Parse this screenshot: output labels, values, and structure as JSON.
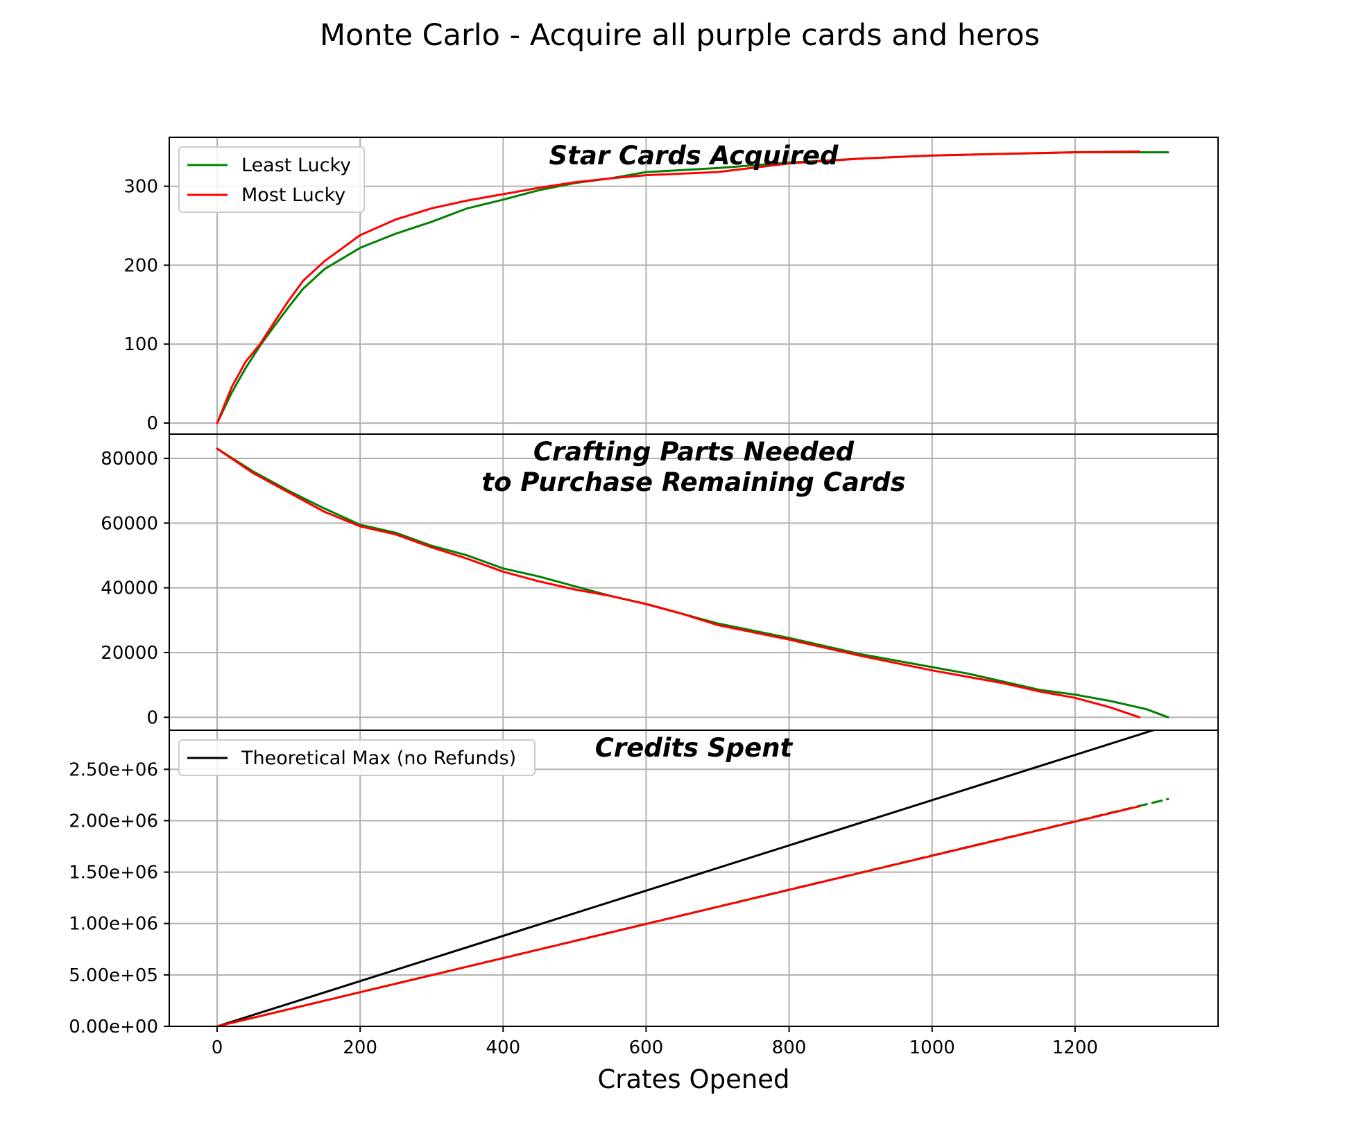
{
  "figure": {
    "suptitle": "Monte Carlo - Acquire all purple cards and heros",
    "xlabel": "Crates Opened"
  },
  "colors": {
    "least_lucky": "#008000",
    "most_lucky": "#ff0000",
    "theoretical_max": "#000000",
    "grid": "#b0b0b0"
  },
  "chart_data": [
    {
      "type": "line",
      "title": "Star Cards Acquired",
      "xlabel": "",
      "ylabel": "",
      "xlim": [
        -67,
        1400
      ],
      "ylim": [
        -14,
        362
      ],
      "xticks": [
        0,
        200,
        400,
        600,
        800,
        1000,
        1200
      ],
      "yticks": [
        0,
        100,
        200,
        300
      ],
      "ytick_labels": [
        "0",
        "100",
        "200",
        "300"
      ],
      "grid": true,
      "legend": {
        "location": "upper left",
        "entries": [
          "Least Lucky",
          "Most Lucky"
        ]
      },
      "series": [
        {
          "name": "Least Lucky",
          "color": "#008000",
          "style": "solid",
          "x": [
            0,
            20,
            40,
            60,
            80,
            100,
            120,
            150,
            200,
            250,
            300,
            350,
            400,
            450,
            500,
            550,
            600,
            700,
            800,
            900,
            1000,
            1100,
            1200,
            1330
          ],
          "y": [
            0,
            38,
            70,
            98,
            123,
            147,
            170,
            195,
            222,
            240,
            255,
            272,
            283,
            295,
            304,
            310,
            318,
            323,
            330,
            335,
            339,
            341,
            343,
            343
          ]
        },
        {
          "name": "Most Lucky",
          "color": "#ff0000",
          "style": "solid",
          "x": [
            0,
            20,
            40,
            60,
            80,
            100,
            120,
            150,
            200,
            250,
            300,
            350,
            400,
            450,
            500,
            550,
            600,
            700,
            800,
            900,
            1000,
            1100,
            1200,
            1290
          ],
          "y": [
            0,
            45,
            78,
            100,
            128,
            155,
            180,
            205,
            238,
            258,
            272,
            282,
            290,
            298,
            305,
            310,
            314,
            318,
            329,
            335,
            339,
            341,
            343,
            344
          ]
        }
      ]
    },
    {
      "type": "line",
      "title": "Crafting Parts Needed\nto Purchase Remaining Cards",
      "xlabel": "",
      "ylabel": "",
      "xlim": [
        -67,
        1400
      ],
      "ylim": [
        -4000,
        87500
      ],
      "xticks": [
        0,
        200,
        400,
        600,
        800,
        1000,
        1200
      ],
      "yticks": [
        0,
        20000,
        40000,
        60000,
        80000
      ],
      "ytick_labels": [
        "0",
        "20000",
        "40000",
        "60000",
        "80000"
      ],
      "grid": true,
      "series": [
        {
          "name": "Least Lucky",
          "color": "#008000",
          "style": "solid",
          "x": [
            0,
            50,
            100,
            150,
            200,
            250,
            300,
            350,
            400,
            450,
            500,
            550,
            600,
            650,
            700,
            800,
            900,
            1000,
            1050,
            1100,
            1150,
            1200,
            1250,
            1300,
            1330
          ],
          "y": [
            83000,
            76000,
            70000,
            64500,
            59500,
            57000,
            53000,
            50000,
            46000,
            43500,
            40500,
            37500,
            35000,
            32000,
            29000,
            24500,
            19500,
            15500,
            13500,
            11000,
            8500,
            7000,
            5000,
            2500,
            0
          ]
        },
        {
          "name": "Most Lucky",
          "color": "#ff0000",
          "style": "solid",
          "x": [
            0,
            50,
            100,
            150,
            200,
            250,
            300,
            350,
            400,
            450,
            500,
            550,
            600,
            650,
            700,
            800,
            900,
            1000,
            1050,
            1100,
            1150,
            1200,
            1250,
            1290
          ],
          "y": [
            83000,
            75500,
            69500,
            63500,
            59000,
            56500,
            52500,
            49000,
            45000,
            42000,
            39500,
            37500,
            35000,
            32000,
            28500,
            24000,
            19000,
            14500,
            12500,
            10500,
            8000,
            6000,
            3000,
            0
          ]
        }
      ]
    },
    {
      "type": "line",
      "title": "Credits Spent",
      "xlabel": "Crates Opened",
      "ylabel": "",
      "xlim": [
        -67,
        1400
      ],
      "ylim": [
        0,
        2880000
      ],
      "xticks": [
        0,
        200,
        400,
        600,
        800,
        1000,
        1200
      ],
      "xtick_labels": [
        "0",
        "200",
        "400",
        "600",
        "800",
        "1000",
        "1200"
      ],
      "yticks": [
        0,
        500000,
        1000000,
        1500000,
        2000000,
        2500000
      ],
      "ytick_labels": [
        "0.00e+00",
        "5.00e+05",
        "1.00e+06",
        "1.50e+06",
        "2.00e+06",
        "2.50e+06"
      ],
      "grid": true,
      "legend": {
        "location": "upper left",
        "entries": [
          "Theoretical Max (no Refunds)"
        ]
      },
      "series": [
        {
          "name": "Theoretical Max (no Refunds)",
          "color": "#000000",
          "style": "solid",
          "x": [
            0,
            1330
          ],
          "y": [
            0,
            2926000
          ]
        },
        {
          "name": "Least Lucky",
          "color": "#008000",
          "style": "dashed",
          "x": [
            0,
            1330
          ],
          "y": [
            0,
            2210000
          ]
        },
        {
          "name": "Most Lucky",
          "color": "#ff0000",
          "style": "solid",
          "x": [
            0,
            1290
          ],
          "y": [
            0,
            2140000
          ]
        }
      ]
    }
  ]
}
